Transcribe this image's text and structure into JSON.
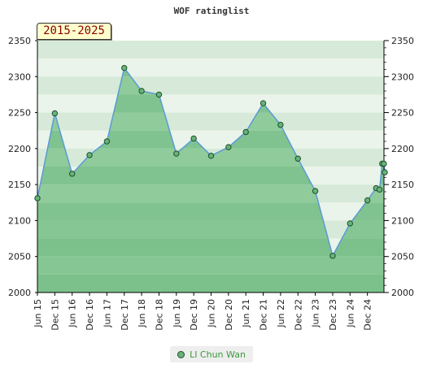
{
  "chart_data": {
    "type": "area",
    "title": "WOF ratinglist",
    "range_label": "2015-2025",
    "ylim": [
      2000,
      2350
    ],
    "y_ticks": [
      "2000",
      "2050",
      "2100",
      "2150",
      "2200",
      "2250",
      "2300",
      "2350"
    ],
    "x_ticks": [
      "Jun 15",
      "Dec 15",
      "Jun 16",
      "Dec 16",
      "Jun 17",
      "Dec 17",
      "Jun 18",
      "Dec 18",
      "Jun 19",
      "Dec 19",
      "Jun 20",
      "Dec 20",
      "Jun 21",
      "Dec 21",
      "Jun 22",
      "Dec 22",
      "Jun 23",
      "Dec 23",
      "Jun 24",
      "Dec 24"
    ],
    "series": [
      {
        "name": "LI Chun Wan",
        "color": "#66b37a",
        "line_color": "#5b9bd5",
        "x": [
          0,
          1,
          2,
          3,
          4,
          5,
          6,
          7,
          8,
          9,
          10,
          11,
          12,
          13,
          14,
          15,
          16,
          17,
          18,
          19,
          19.5,
          19.7,
          19.85,
          19.95,
          20.0
        ],
        "values": [
          2131,
          2249,
          2165,
          2191,
          2210,
          2312,
          2280,
          2275,
          2193,
          2214,
          2190,
          2202,
          2223,
          2263,
          2233,
          2186,
          2141,
          2051,
          2096,
          2128,
          2145,
          2143,
          2179,
          2179,
          2167
        ]
      }
    ],
    "grid": true,
    "legend_position": "bottom-center"
  }
}
